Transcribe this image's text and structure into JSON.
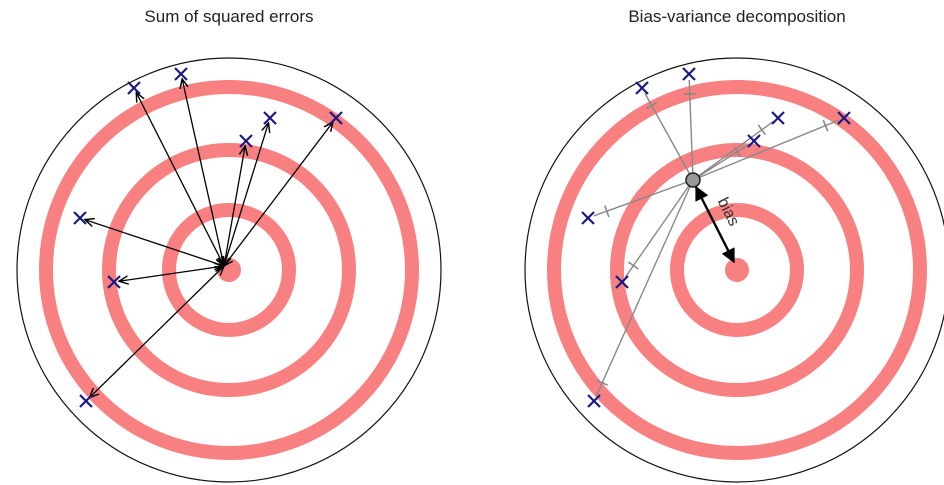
{
  "left_panel": {
    "title": "Sum of squared errors"
  },
  "right_panel": {
    "title": "Bias-variance decomposition",
    "bias_label": "bias"
  }
}
